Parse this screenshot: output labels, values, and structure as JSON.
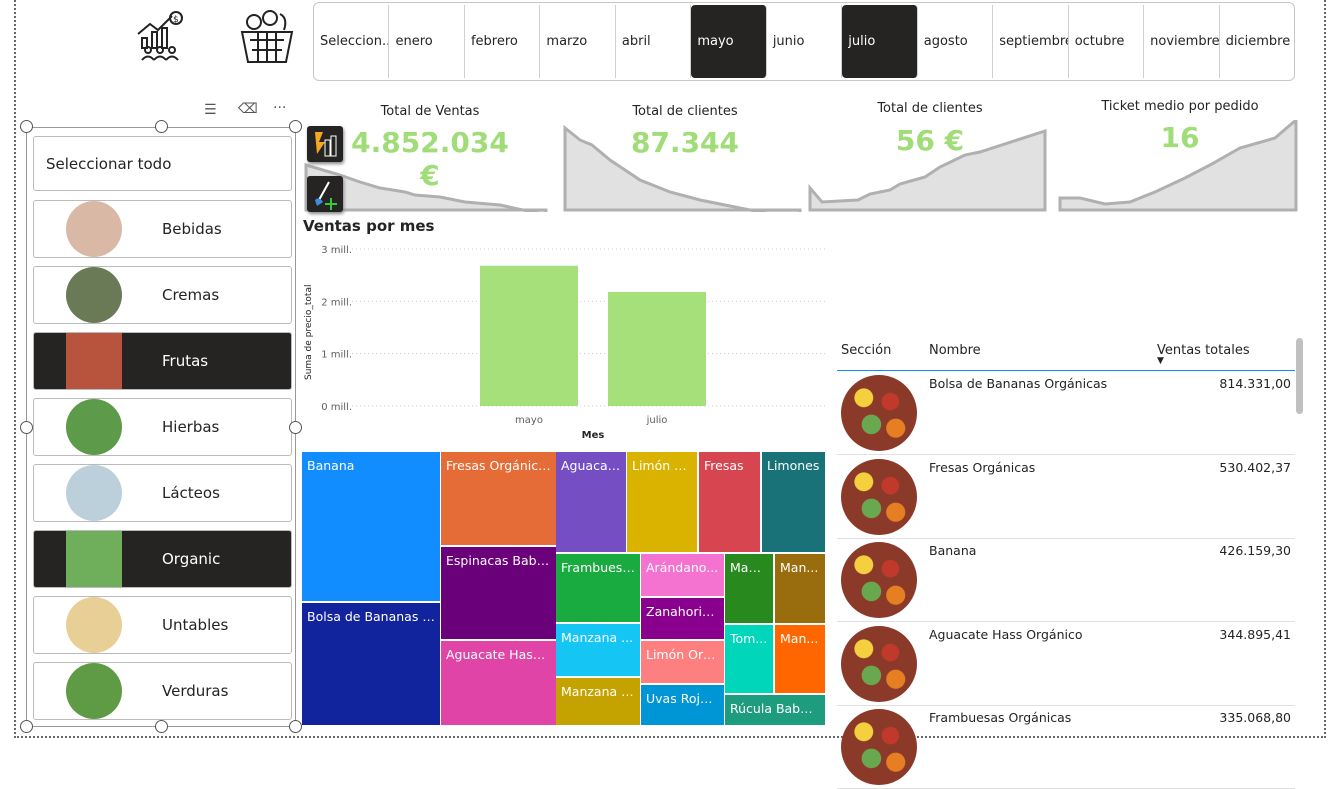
{
  "months": {
    "items": [
      "Seleccion...",
      "enero",
      "febrero",
      "marzo",
      "abril",
      "mayo",
      "junio",
      "julio",
      "agosto",
      "septiembre",
      "octubre",
      "noviembre",
      "diciembre"
    ],
    "selected": [
      "mayo",
      "julio"
    ]
  },
  "icons": {
    "sales_icon": "sales-growth-people-icon",
    "basket_icon": "grocery-basket-icon"
  },
  "slicer": {
    "select_all": "Seleccionar todo",
    "items": [
      {
        "label": "Bebidas",
        "selected": false,
        "color": "#d9b9a6"
      },
      {
        "label": "Cremas",
        "selected": false,
        "color": "#6b7a56"
      },
      {
        "label": "Frutas",
        "selected": true,
        "color": "#b8543d"
      },
      {
        "label": "Hierbas",
        "selected": false,
        "color": "#5d9a4a"
      },
      {
        "label": "Lácteos",
        "selected": false,
        "color": "#bcd0dc"
      },
      {
        "label": "Organic",
        "selected": true,
        "color": "#6fae5a"
      },
      {
        "label": "Untables",
        "selected": false,
        "color": "#e8cf95"
      },
      {
        "label": "Verduras",
        "selected": false,
        "color": "#5f9a45"
      }
    ]
  },
  "kpis": [
    {
      "title": "Total de Ventas",
      "value": "4.852.034 €"
    },
    {
      "title": "Total de clientes",
      "value": "87.344"
    },
    {
      "title": "Total de clientes",
      "value": "56 €"
    },
    {
      "title": "Ticket medio por pedido",
      "value": "16"
    }
  ],
  "colors": {
    "kpi_value": "#a0dc78",
    "bar": "#a6e07a",
    "selected": "#252423"
  },
  "chart_data": {
    "type": "bar",
    "title": "Ventas por mes",
    "xlabel": "Mes",
    "ylabel": "Suma de precio_total",
    "categories": [
      "mayo",
      "julio"
    ],
    "values": [
      2.68,
      2.18
    ],
    "unit": "mill.",
    "ylim": [
      0,
      3
    ],
    "yticks": [
      "0 mill.",
      "1 mill.",
      "2 mill.",
      "3 mill."
    ],
    "grid": true
  },
  "treemap": [
    {
      "label": "Banana",
      "color": "#118dff"
    },
    {
      "label": "Bolsa de Bananas O...",
      "color": "#12239e"
    },
    {
      "label": "Fresas Orgánicas",
      "color": "#e66c37"
    },
    {
      "label": "Espinacas Baby ...",
      "color": "#6b007b"
    },
    {
      "label": "Aguacate Hass ...",
      "color": "#e044a7"
    },
    {
      "label": "Aguacat...",
      "color": "#744ec2"
    },
    {
      "label": "Limón G...",
      "color": "#d9b300"
    },
    {
      "label": "Fresas",
      "color": "#d64550"
    },
    {
      "label": "Limones",
      "color": "#197278"
    },
    {
      "label": "Frambuesa...",
      "color": "#1aab40"
    },
    {
      "label": "Manzana ...",
      "color": "#15c6f4"
    },
    {
      "label": "Manzana F...",
      "color": "#c4a200"
    },
    {
      "label": "Arándano...",
      "color": "#f472d0"
    },
    {
      "label": "Zanahoria...",
      "color": "#8a008e"
    },
    {
      "label": "Limón Org...",
      "color": "#fe7f7f"
    },
    {
      "label": "Uvas Roja...",
      "color": "#0096d6"
    },
    {
      "label": "Man...",
      "color": "#28891f"
    },
    {
      "label": "Man...",
      "color": "#996c0d"
    },
    {
      "label": "Tom...",
      "color": "#00d6b9"
    },
    {
      "label": "Man...",
      "color": "#ff6600"
    },
    {
      "label": "Rúcula Baby ...",
      "color": "#1e9c7e"
    }
  ],
  "table": {
    "headers": [
      "Sección",
      "Nombre",
      "Ventas totales"
    ],
    "rows": [
      {
        "name": "Bolsa de Bananas Orgánicas",
        "value": "814.331,00"
      },
      {
        "name": "Fresas Orgánicas",
        "value": "530.402,37"
      },
      {
        "name": "Banana",
        "value": "426.159,30"
      },
      {
        "name": "Aguacate Hass Orgánico",
        "value": "344.895,41"
      },
      {
        "name": "Frambuesas Orgánicas",
        "value": "335.068,80"
      }
    ]
  }
}
